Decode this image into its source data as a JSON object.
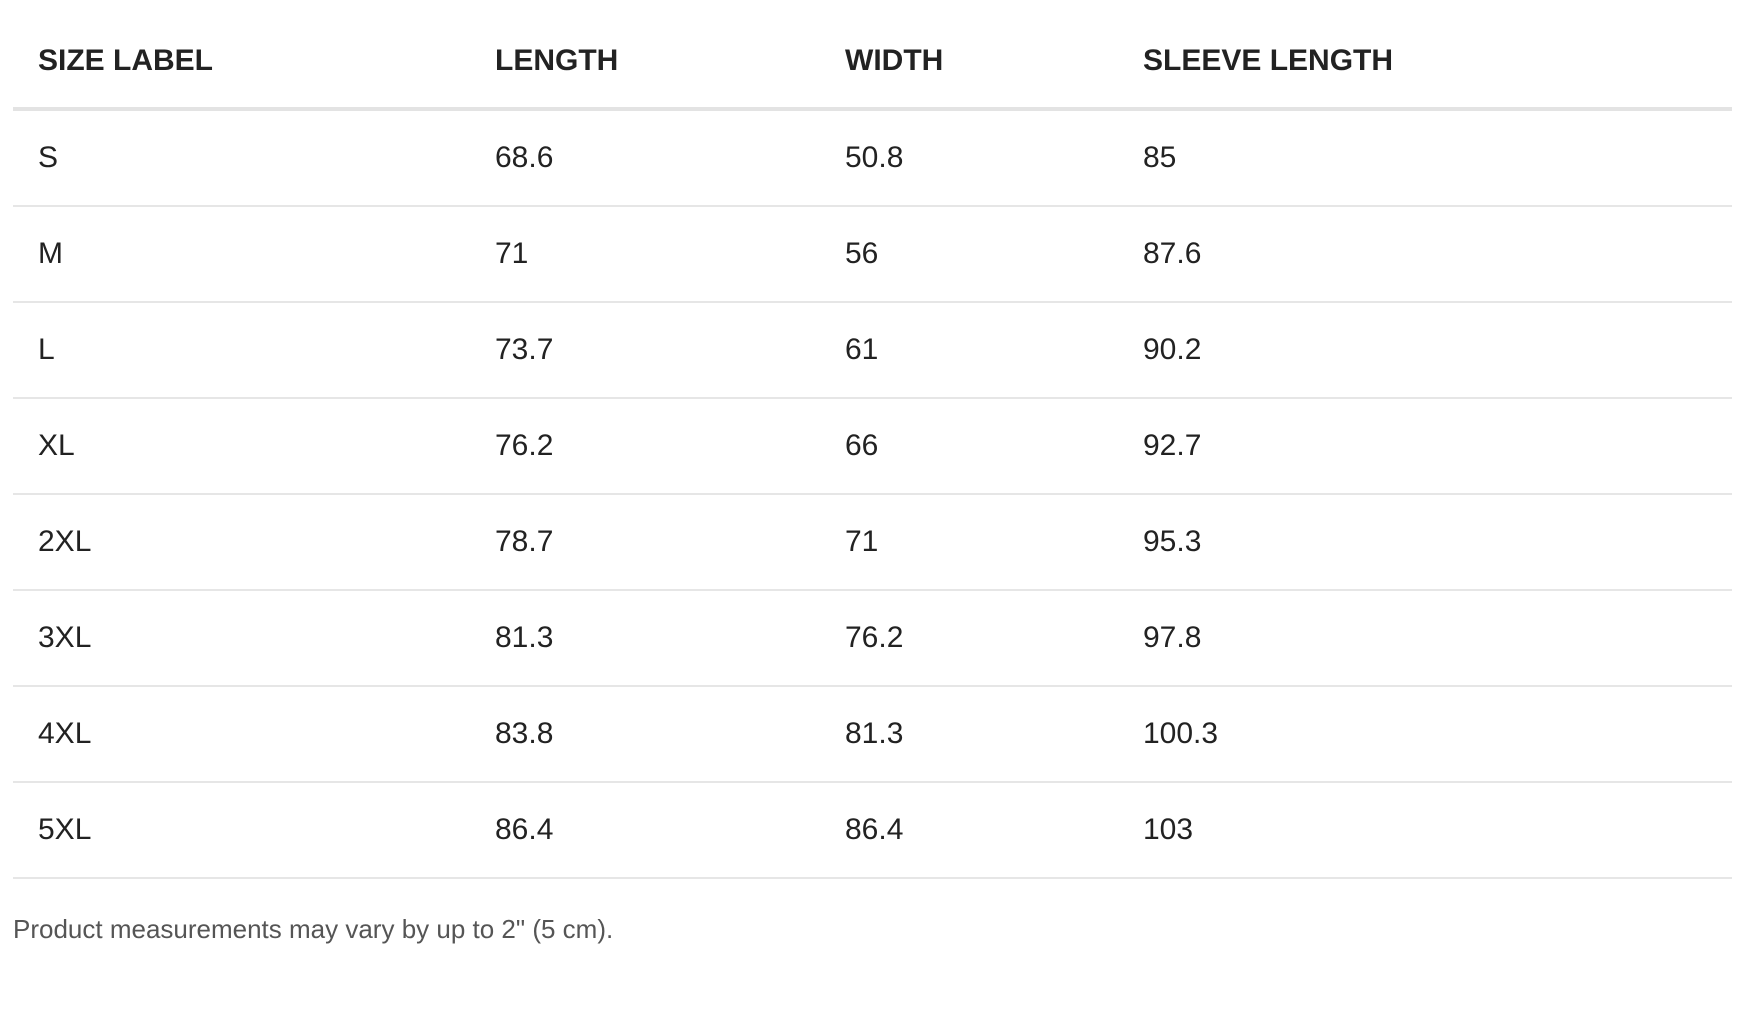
{
  "table": {
    "headers": [
      "SIZE LABEL",
      "LENGTH",
      "WIDTH",
      "SLEEVE LENGTH"
    ],
    "rows": [
      [
        "S",
        "68.6",
        "50.8",
        "85"
      ],
      [
        "M",
        "71",
        "56",
        "87.6"
      ],
      [
        "L",
        "73.7",
        "61",
        "90.2"
      ],
      [
        "XL",
        "76.2",
        "66",
        "92.7"
      ],
      [
        "2XL",
        "78.7",
        "71",
        "95.3"
      ],
      [
        "3XL",
        "81.3",
        "76.2",
        "97.8"
      ],
      [
        "4XL",
        "83.8",
        "81.3",
        "100.3"
      ],
      [
        "5XL",
        "86.4",
        "86.4",
        "103"
      ]
    ]
  },
  "note": "Product measurements may vary by up to 2\" (5 cm)."
}
